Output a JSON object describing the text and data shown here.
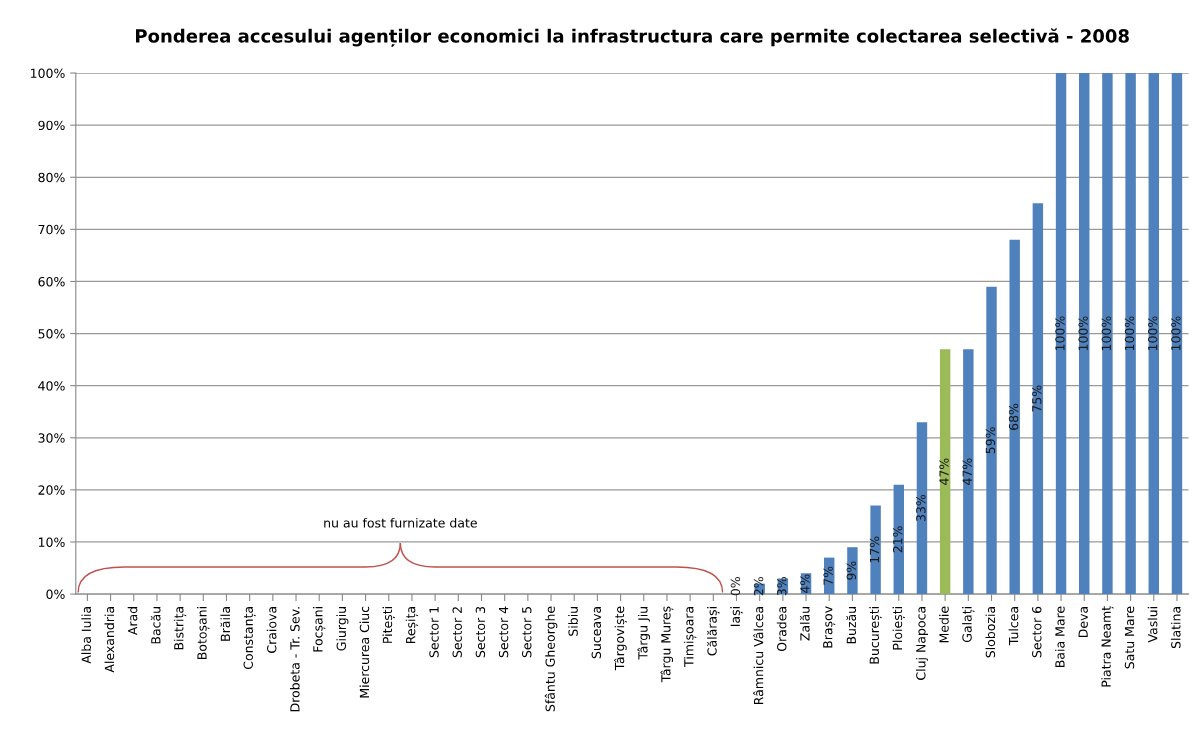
{
  "chart_data": {
    "type": "bar",
    "title": "Ponderea accesului agenților economici la infrastructura care permite colectarea selectivă - 2008",
    "categories": [
      "Alba Iulia",
      "Alexandria",
      "Arad",
      "Bacău",
      "Bistrița",
      "Botoșani",
      "Brăila",
      "Constanța",
      "Craiova",
      "Drobeta - Tr. Sev.",
      "Focșani",
      "Giurgiu",
      "Miercurea Ciuc",
      "Pitești",
      "Reșița",
      "Sector 1",
      "Sector 2",
      "Sector 3",
      "Sector 4",
      "Sector 5",
      "Sfântu Gheorghe",
      "Sibiu",
      "Suceava",
      "Târgoviște",
      "Târgu Jiu",
      "Târgu Mureș",
      "Timișoara",
      "Călărași",
      "Iași",
      "Râmnicu Vâlcea",
      "Oradea",
      "Zalău",
      "Brașov",
      "Buzău",
      "București",
      "Ploiești",
      "Cluj Napoca",
      "Medie",
      "Galați",
      "Slobozia",
      "Tulcea",
      "Sector 6",
      "Baia Mare",
      "Deva",
      "Piatra Neamț",
      "Satu Mare",
      "Vaslui",
      "Slatina"
    ],
    "values": [
      null,
      null,
      null,
      null,
      null,
      null,
      null,
      null,
      null,
      null,
      null,
      null,
      null,
      null,
      null,
      null,
      null,
      null,
      null,
      null,
      null,
      null,
      null,
      null,
      null,
      null,
      null,
      null,
      0,
      2,
      3,
      4,
      7,
      9,
      17,
      21,
      33,
      47,
      47,
      59,
      68,
      75,
      100,
      100,
      100,
      100,
      100,
      100
    ],
    "value_labels": [
      null,
      null,
      null,
      null,
      null,
      null,
      null,
      null,
      null,
      null,
      null,
      null,
      null,
      null,
      null,
      null,
      null,
      null,
      null,
      null,
      null,
      null,
      null,
      null,
      null,
      null,
      null,
      null,
      "0%",
      "2%",
      "3%",
      "4%",
      "7%",
      "9%",
      "17%",
      "21%",
      "33%",
      "47%",
      "47%",
      "59%",
      "68%",
      "75%",
      "100%",
      "100%",
      "100%",
      "100%",
      "100%",
      "100%"
    ],
    "colors": [
      "#4f81bd",
      "#4f81bd",
      "#4f81bd",
      "#4f81bd",
      "#4f81bd",
      "#4f81bd",
      "#4f81bd",
      "#4f81bd",
      "#4f81bd",
      "#4f81bd",
      "#4f81bd",
      "#4f81bd",
      "#4f81bd",
      "#4f81bd",
      "#4f81bd",
      "#4f81bd",
      "#4f81bd",
      "#4f81bd",
      "#4f81bd",
      "#4f81bd",
      "#4f81bd",
      "#4f81bd",
      "#4f81bd",
      "#4f81bd",
      "#4f81bd",
      "#4f81bd",
      "#4f81bd",
      "#4f81bd",
      "#4f81bd",
      "#4f81bd",
      "#4f81bd",
      "#4f81bd",
      "#4f81bd",
      "#4f81bd",
      "#4f81bd",
      "#4f81bd",
      "#4f81bd",
      "#9bbb59",
      "#4f81bd",
      "#4f81bd",
      "#4f81bd",
      "#4f81bd",
      "#4f81bd",
      "#4f81bd",
      "#4f81bd",
      "#4f81bd",
      "#4f81bd",
      "#4f81bd"
    ],
    "ylim": [
      0,
      100
    ],
    "yticks": [
      {
        "value": 0,
        "label": "0%"
      },
      {
        "value": 10,
        "label": "10%"
      },
      {
        "value": 20,
        "label": "20%"
      },
      {
        "value": 30,
        "label": "30%"
      },
      {
        "value": 40,
        "label": "40%"
      },
      {
        "value": 50,
        "label": "50%"
      },
      {
        "value": 60,
        "label": "60%"
      },
      {
        "value": 70,
        "label": "70%"
      },
      {
        "value": 80,
        "label": "80%"
      },
      {
        "value": 90,
        "label": "90%"
      },
      {
        "value": 100,
        "label": "100%"
      }
    ],
    "grid": "y",
    "annotations": [
      "nu au fost furnizate date"
    ]
  }
}
